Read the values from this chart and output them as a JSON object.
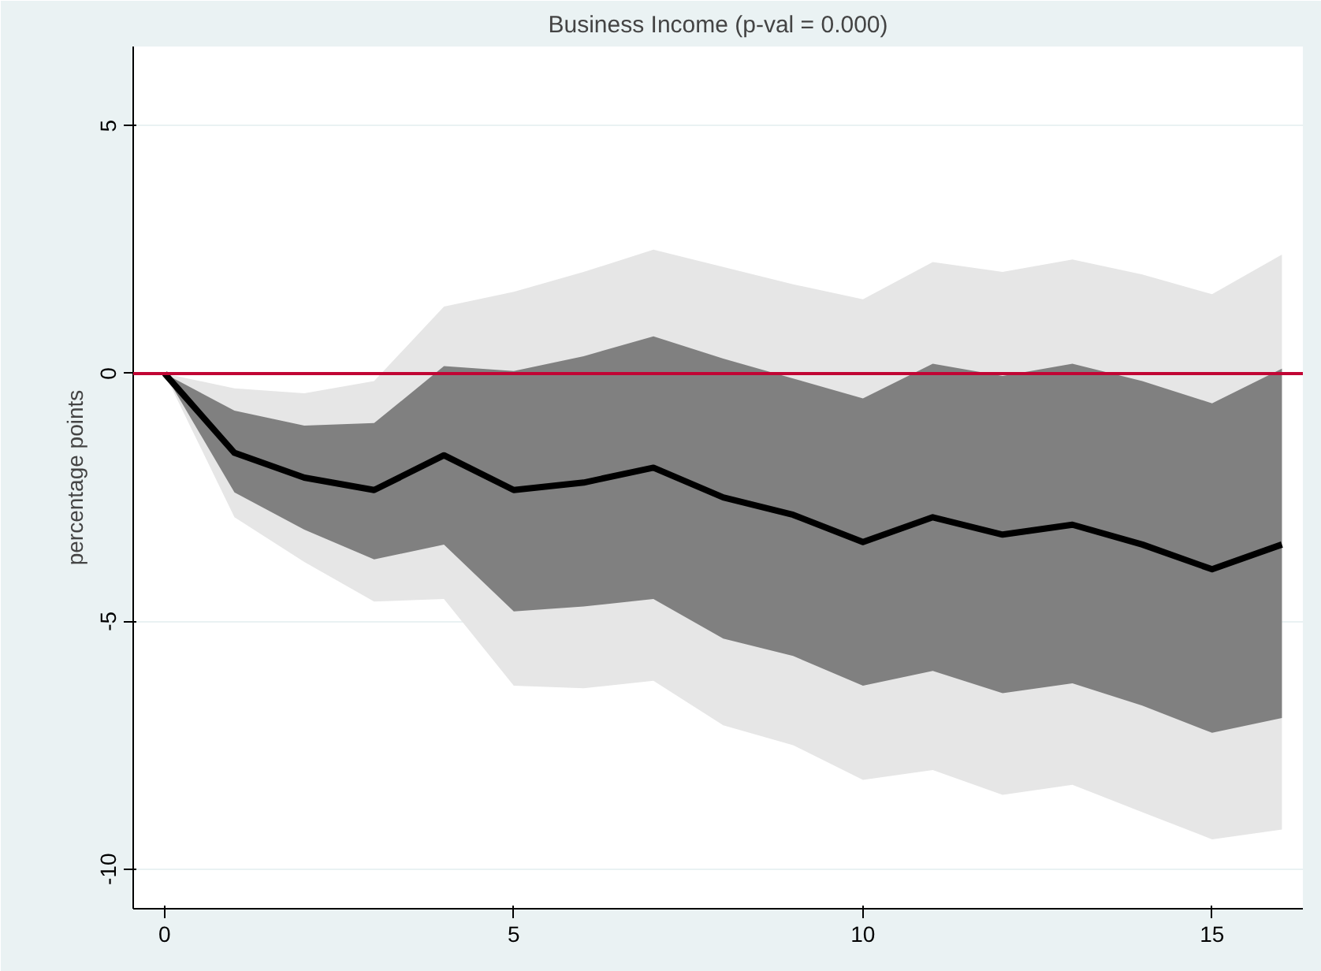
{
  "chart_data": {
    "type": "line",
    "title": "Business Income (p-val = 0.000)",
    "ylabel": "percentage points",
    "x": [
      0,
      1,
      2,
      3,
      4,
      5,
      6,
      7,
      8,
      9,
      10,
      11,
      12,
      13,
      14,
      15,
      16
    ],
    "series": [
      {
        "color": "#e6e6e6",
        "values": [
          null,
          null,
          null,
          null,
          null,
          null,
          null,
          null,
          null,
          null,
          null,
          null,
          null,
          null,
          null,
          null,
          null
        ],
        "lower": [
          0,
          -2.9,
          -3.8,
          -4.6,
          -4.55,
          -6.3,
          -6.35,
          -6.2,
          -7.1,
          -7.5,
          -8.2,
          -8.0,
          -8.5,
          -8.3,
          -8.85,
          -9.4,
          -9.2
        ],
        "upper": [
          0,
          -0.3,
          -0.4,
          -0.15,
          1.35,
          1.65,
          2.05,
          2.5,
          2.15,
          1.8,
          1.5,
          2.25,
          2.05,
          2.3,
          2.0,
          1.6,
          2.4
        ]
      },
      {
        "color": "#808080",
        "values": [
          null,
          null,
          null,
          null,
          null,
          null,
          null,
          null,
          null,
          null,
          null,
          null,
          null,
          null,
          null,
          null,
          null
        ],
        "lower": [
          0,
          -2.4,
          -3.15,
          -3.75,
          -3.45,
          -4.8,
          -4.7,
          -4.55,
          -5.35,
          -5.7,
          -6.3,
          -6.0,
          -6.45,
          -6.25,
          -6.7,
          -7.25,
          -6.95
        ],
        "upper": [
          0,
          -0.75,
          -1.05,
          -1.0,
          0.15,
          0.05,
          0.35,
          0.75,
          0.3,
          -0.1,
          -0.5,
          0.2,
          -0.05,
          0.2,
          -0.15,
          -0.6,
          0.1
        ]
      },
      {
        "color": "#000000",
        "values": [
          0,
          -1.6,
          -2.1,
          -2.35,
          -1.65,
          -2.35,
          -2.2,
          -1.9,
          -2.5,
          -2.85,
          -3.4,
          -2.9,
          -3.25,
          -3.05,
          -3.45,
          -3.95,
          -3.45
        ]
      }
    ],
    "ref_lines": [
      {
        "axis": "y",
        "value": 0,
        "color": "#c10534"
      }
    ],
    "xlim": [
      -0.45,
      16.3
    ],
    "ylim": [
      -10.8,
      6.6
    ],
    "xticks": [
      0,
      5,
      10,
      15
    ],
    "yticks": [
      -10,
      -5,
      0,
      5
    ],
    "grid": "y",
    "marker": "none",
    "line_style": "solid"
  }
}
